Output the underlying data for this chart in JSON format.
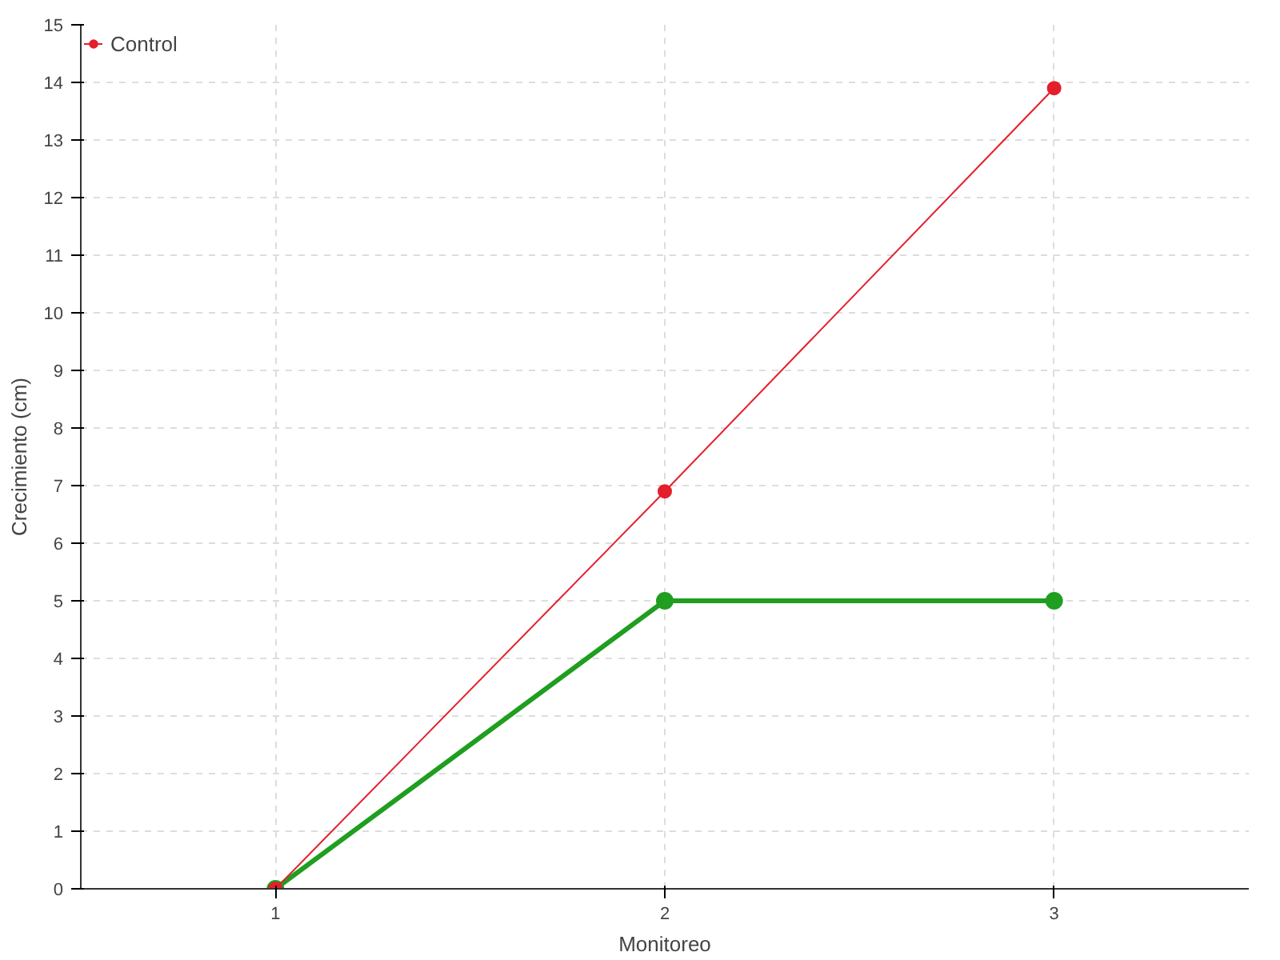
{
  "chart_data": {
    "type": "line",
    "xlabel": "Monitoreo",
    "ylabel": "Crecimiento (cm)",
    "x": [
      1,
      2,
      3
    ],
    "series": [
      {
        "color": "#1f9e1f",
        "values": [
          0,
          5,
          5
        ]
      },
      {
        "name": "Control",
        "color": "#e41f2b",
        "values": [
          0,
          6.9,
          13.9
        ]
      }
    ],
    "xlim": [
      0.5,
      3.5
    ],
    "xticks": [
      1,
      2,
      3
    ],
    "ylim": [
      0,
      15
    ],
    "yticks": [
      0,
      1,
      2,
      3,
      4,
      5,
      6,
      7,
      8,
      9,
      10,
      11,
      12,
      13,
      14,
      15
    ],
    "grid": true,
    "legend": "top left",
    "marker": "circle",
    "line_style": "solid"
  }
}
